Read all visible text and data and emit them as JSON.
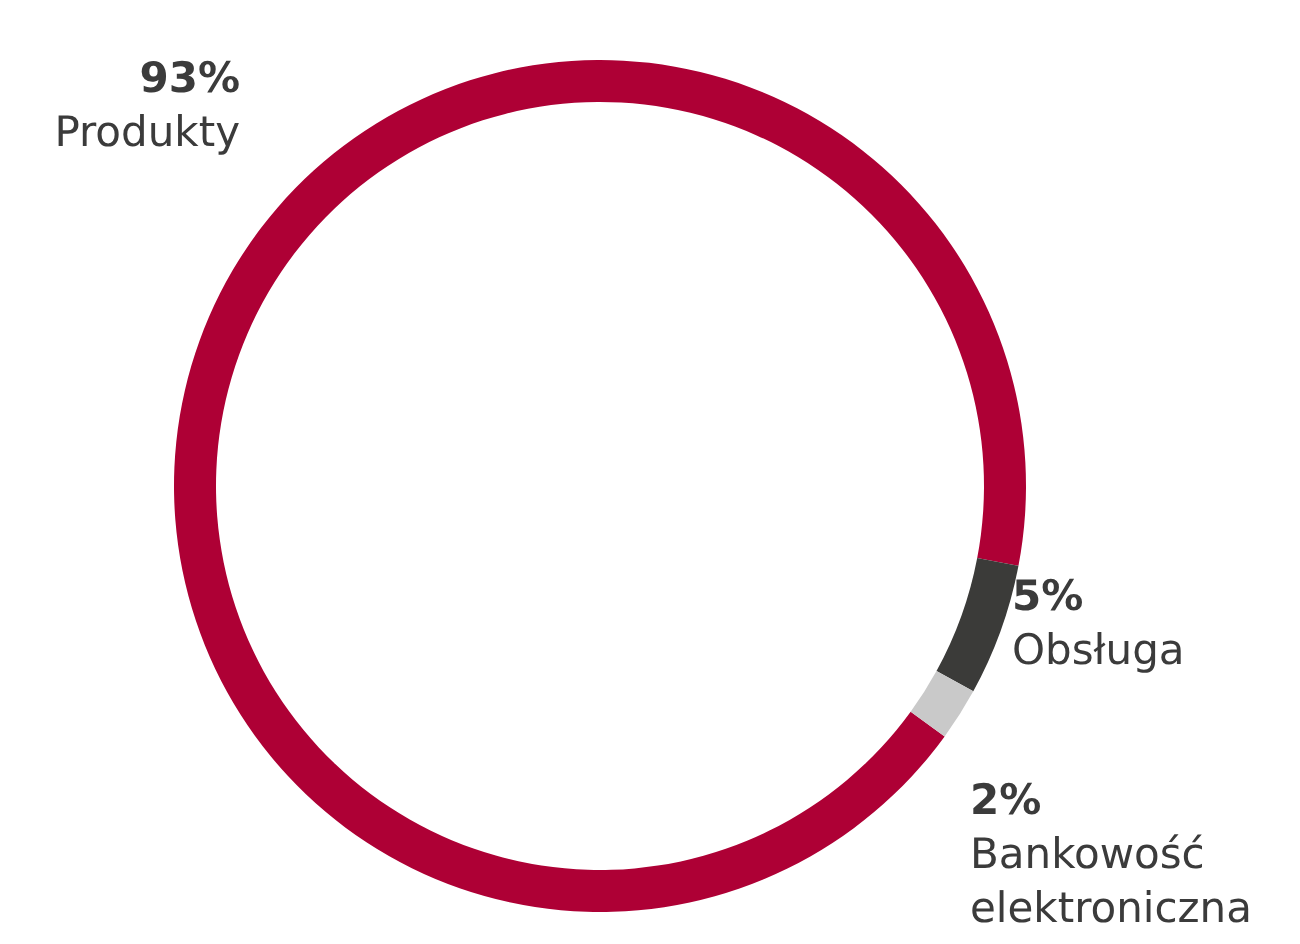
{
  "chart_data": {
    "type": "donut",
    "categories": [
      "Produkty",
      "Obsługa",
      "Bankowość elektroniczna"
    ],
    "values": [
      93,
      5,
      2
    ],
    "colors": [
      "#ae0035",
      "#3b3b39",
      "#c9c9c9"
    ],
    "value_labels": [
      "93%",
      "5%",
      "2%"
    ]
  }
}
